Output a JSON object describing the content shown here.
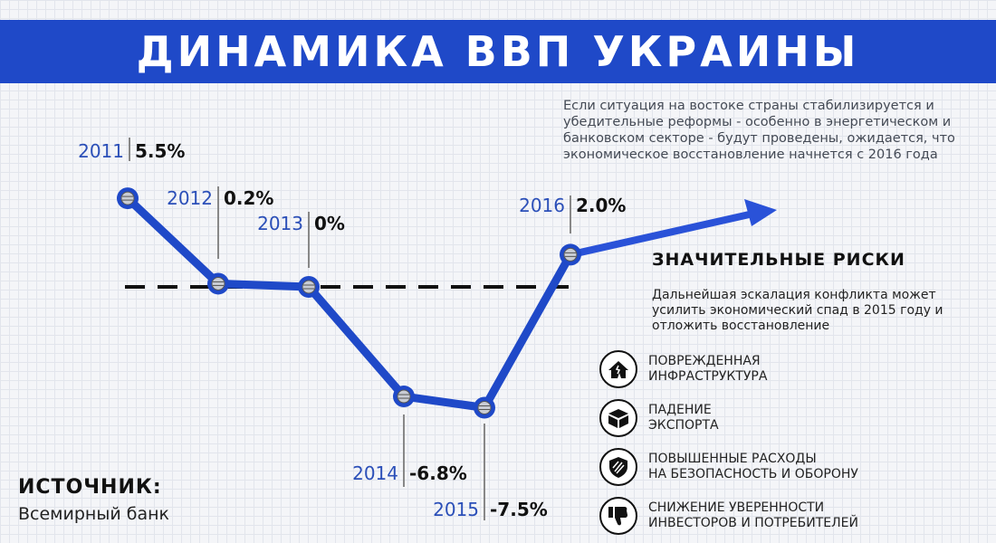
{
  "header": {
    "title": "Динамика ВВП Украины"
  },
  "colors": {
    "banner": "#1f49c8",
    "line": "#1f49c8",
    "arrow": "#2a52d8",
    "year_text": "#2b4fb8"
  },
  "chart_data": {
    "type": "line",
    "title": "Динамика ВВП Украины",
    "x": [
      "2011",
      "2012",
      "2013",
      "2014",
      "2015",
      "2016"
    ],
    "values": [
      5.5,
      0.2,
      0,
      -6.8,
      -7.5,
      2.0
    ],
    "value_labels": [
      "5.5%",
      "0.2%",
      "0%",
      "-6.8%",
      "-7.5%",
      "2.0%"
    ],
    "baseline": 0,
    "baseline_style": "dashed",
    "trend_after_last": "arrow-up"
  },
  "note": "Если ситуация на востоке страны стабилизируется и убедительные реформы - особенно в энергетическом и банковском секторе - будут проведены, ожидается, что экономическое восстановление начнется с 2016 года",
  "risks": {
    "title": "ЗНАЧИТЕЛЬНЫЕ РИСКИ",
    "description": "Дальнейшая эскалация конфликта может усилить экономический спад в 2015 году и отложить восстановление",
    "items": [
      {
        "icon": "damaged-house-icon",
        "label": "ПОВРЕЖДЕННАЯ\nИНФРАСТРУКТУРА"
      },
      {
        "icon": "box-icon",
        "label": "ПАДЕНИЕ\nЭКСПОРТА"
      },
      {
        "icon": "shield-icon",
        "label": "ПОВЫШЕННЫЕ РАСХОДЫ\nНА БЕЗОПАСНОСТЬ И ОБОРОНУ"
      },
      {
        "icon": "thumbs-down-icon",
        "label": "СНИЖЕНИЕ УВЕРЕННОСТИ\nИНВЕСТОРОВ И ПОТРЕБИТЕЛЕЙ"
      }
    ]
  },
  "source": {
    "label": "ИСТОЧНИК:",
    "value": "Всемирный банк"
  }
}
